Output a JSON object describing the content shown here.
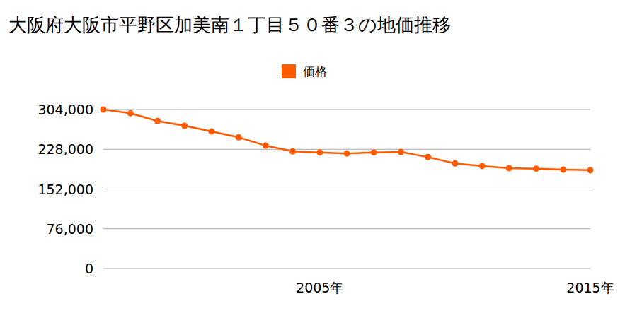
{
  "chart_data": {
    "type": "line",
    "title": "大阪府大阪市平野区加美南１丁目５０番３の地価推移",
    "categories": [
      null,
      null,
      null,
      null,
      null,
      null,
      null,
      null,
      "2005年",
      null,
      null,
      null,
      null,
      null,
      null,
      null,
      null,
      null,
      "2015年"
    ],
    "series": [
      {
        "name": "価格",
        "color": "#ff5a00",
        "marker": "circle",
        "values": [
          304000,
          297000,
          282000,
          273000,
          262000,
          251000,
          235000,
          224000,
          222000,
          220000,
          222000,
          223000,
          213000,
          201000,
          196000,
          192000,
          191000,
          189000,
          188000
        ]
      }
    ],
    "ylim": [
      0,
      304000
    ],
    "yticks": [
      0,
      {
        "value": 76000,
        "label": "76,000"
      },
      {
        "value": 152000,
        "label": "152,000"
      },
      {
        "value": 228000,
        "label": "228,000"
      },
      {
        "value": 304000,
        "label": "304,000"
      }
    ],
    "grid": true,
    "legend": "top"
  }
}
